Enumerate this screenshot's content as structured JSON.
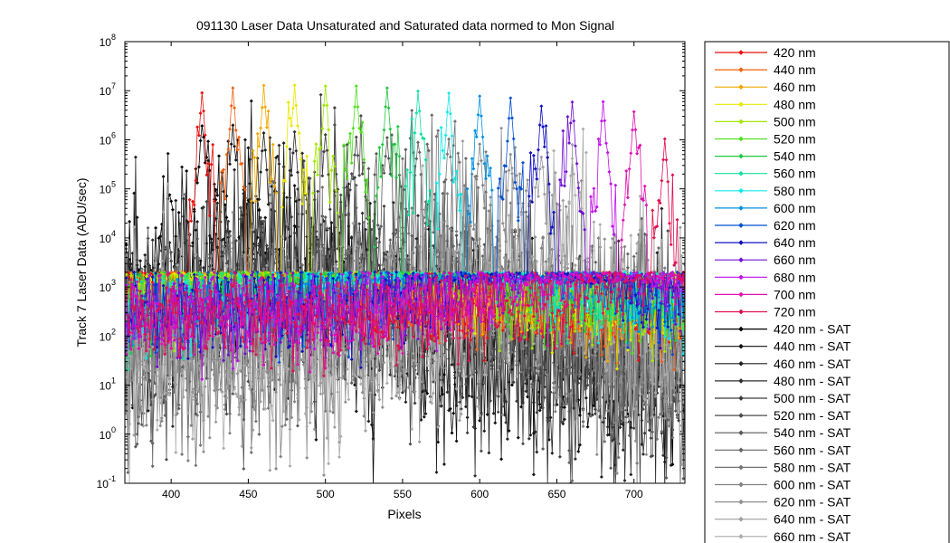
{
  "chart_data": {
    "type": "line",
    "title": "091130 Laser Data  Unsaturated and Saturated data normed to Mon Signal",
    "xlabel": "Pixels",
    "ylabel": "Track 7 Laser Data (ADU/sec)",
    "xlim": [
      370,
      733
    ],
    "ylim": [
      0.1,
      100000000
    ],
    "yscale": "log",
    "grid": false,
    "legend_position": "right-outside",
    "x_ticks": [
      400,
      450,
      500,
      550,
      600,
      650,
      700
    ],
    "y_ticks": [
      {
        "value": 0.1,
        "base": "10",
        "exp": "-1"
      },
      {
        "value": 1,
        "base": "10",
        "exp": "0"
      },
      {
        "value": 10,
        "base": "10",
        "exp": "1"
      },
      {
        "value": 100,
        "base": "10",
        "exp": "2"
      },
      {
        "value": 1000,
        "base": "10",
        "exp": "3"
      },
      {
        "value": 10000,
        "base": "10",
        "exp": "4"
      },
      {
        "value": 100000,
        "base": "10",
        "exp": "5"
      },
      {
        "value": 1000000,
        "base": "10",
        "exp": "6"
      },
      {
        "value": 10000000,
        "base": "10",
        "exp": "7"
      },
      {
        "value": 100000000,
        "base": "10",
        "exp": "8"
      }
    ],
    "series": [
      {
        "name": "420 nm",
        "color": "#e8100f",
        "peak_pixel": 420,
        "peak_value": 9000000
      },
      {
        "name": "440 nm",
        "color": "#f06010",
        "peak_pixel": 440,
        "peak_value": 12000000
      },
      {
        "name": "460 nm",
        "color": "#f0a800",
        "peak_pixel": 460,
        "peak_value": 12500000
      },
      {
        "name": "480 nm",
        "color": "#e8e800",
        "peak_pixel": 480,
        "peak_value": 13000000
      },
      {
        "name": "500 nm",
        "color": "#a0e800",
        "peak_pixel": 500,
        "peak_value": 13000000
      },
      {
        "name": "520 nm",
        "color": "#50e020",
        "peak_pixel": 520,
        "peak_value": 12000000
      },
      {
        "name": "540 nm",
        "color": "#20c840",
        "peak_pixel": 540,
        "peak_value": 11000000
      },
      {
        "name": "560 nm",
        "color": "#10e0a0",
        "peak_pixel": 560,
        "peak_value": 10000000
      },
      {
        "name": "580 nm",
        "color": "#10e8e8",
        "peak_pixel": 580,
        "peak_value": 9000000
      },
      {
        "name": "600 nm",
        "color": "#0090e0",
        "peak_pixel": 600,
        "peak_value": 8000000
      },
      {
        "name": "620 nm",
        "color": "#0050d0",
        "peak_pixel": 620,
        "peak_value": 7000000
      },
      {
        "name": "640 nm",
        "color": "#1010c0",
        "peak_pixel": 640,
        "peak_value": 5000000
      },
      {
        "name": "660 nm",
        "color": "#7010d0",
        "peak_pixel": 660,
        "peak_value": 6000000
      },
      {
        "name": "680 nm",
        "color": "#c010e8",
        "peak_pixel": 680,
        "peak_value": 6000000
      },
      {
        "name": "700 nm",
        "color": "#e010b0",
        "peak_pixel": 700,
        "peak_value": 4000000
      },
      {
        "name": "720 nm",
        "color": "#e01050",
        "peak_pixel": 720,
        "peak_value": 1000000
      },
      {
        "name": "420 nm - SAT",
        "color": "#000000",
        "peak_pixel": 420,
        "peak_value": 2000000
      },
      {
        "name": "440 nm - SAT",
        "color": "#101010",
        "peak_pixel": 440,
        "peak_value": 1800000
      },
      {
        "name": "460 nm - SAT",
        "color": "#202020",
        "peak_pixel": 460,
        "peak_value": 1300000
      },
      {
        "name": "480 nm - SAT",
        "color": "#2e2e2e",
        "peak_pixel": 480,
        "peak_value": 1200000
      },
      {
        "name": "500 nm - SAT",
        "color": "#3c3c3c",
        "peak_pixel": 500,
        "peak_value": 1200000
      },
      {
        "name": "520 nm - SAT",
        "color": "#4a4a4a",
        "peak_pixel": 520,
        "peak_value": 1100000
      },
      {
        "name": "540 nm - SAT",
        "color": "#585858",
        "peak_pixel": 540,
        "peak_value": 1100000
      },
      {
        "name": "560 nm - SAT",
        "color": "#666666",
        "peak_pixel": 560,
        "peak_value": 1000000
      },
      {
        "name": "580 nm - SAT",
        "color": "#747474",
        "peak_pixel": 580,
        "peak_value": 900000
      },
      {
        "name": "600 nm - SAT",
        "color": "#828282",
        "peak_pixel": 600,
        "peak_value": 800000
      },
      {
        "name": "620 nm - SAT",
        "color": "#909090",
        "peak_pixel": 620,
        "peak_value": 600000
      },
      {
        "name": "640 nm - SAT",
        "color": "#9e9e9e",
        "peak_pixel": 640,
        "peak_value": 500000
      },
      {
        "name": "660 nm - SAT",
        "color": "#acacac",
        "peak_pixel": 660,
        "peak_value": 400000
      }
    ]
  }
}
